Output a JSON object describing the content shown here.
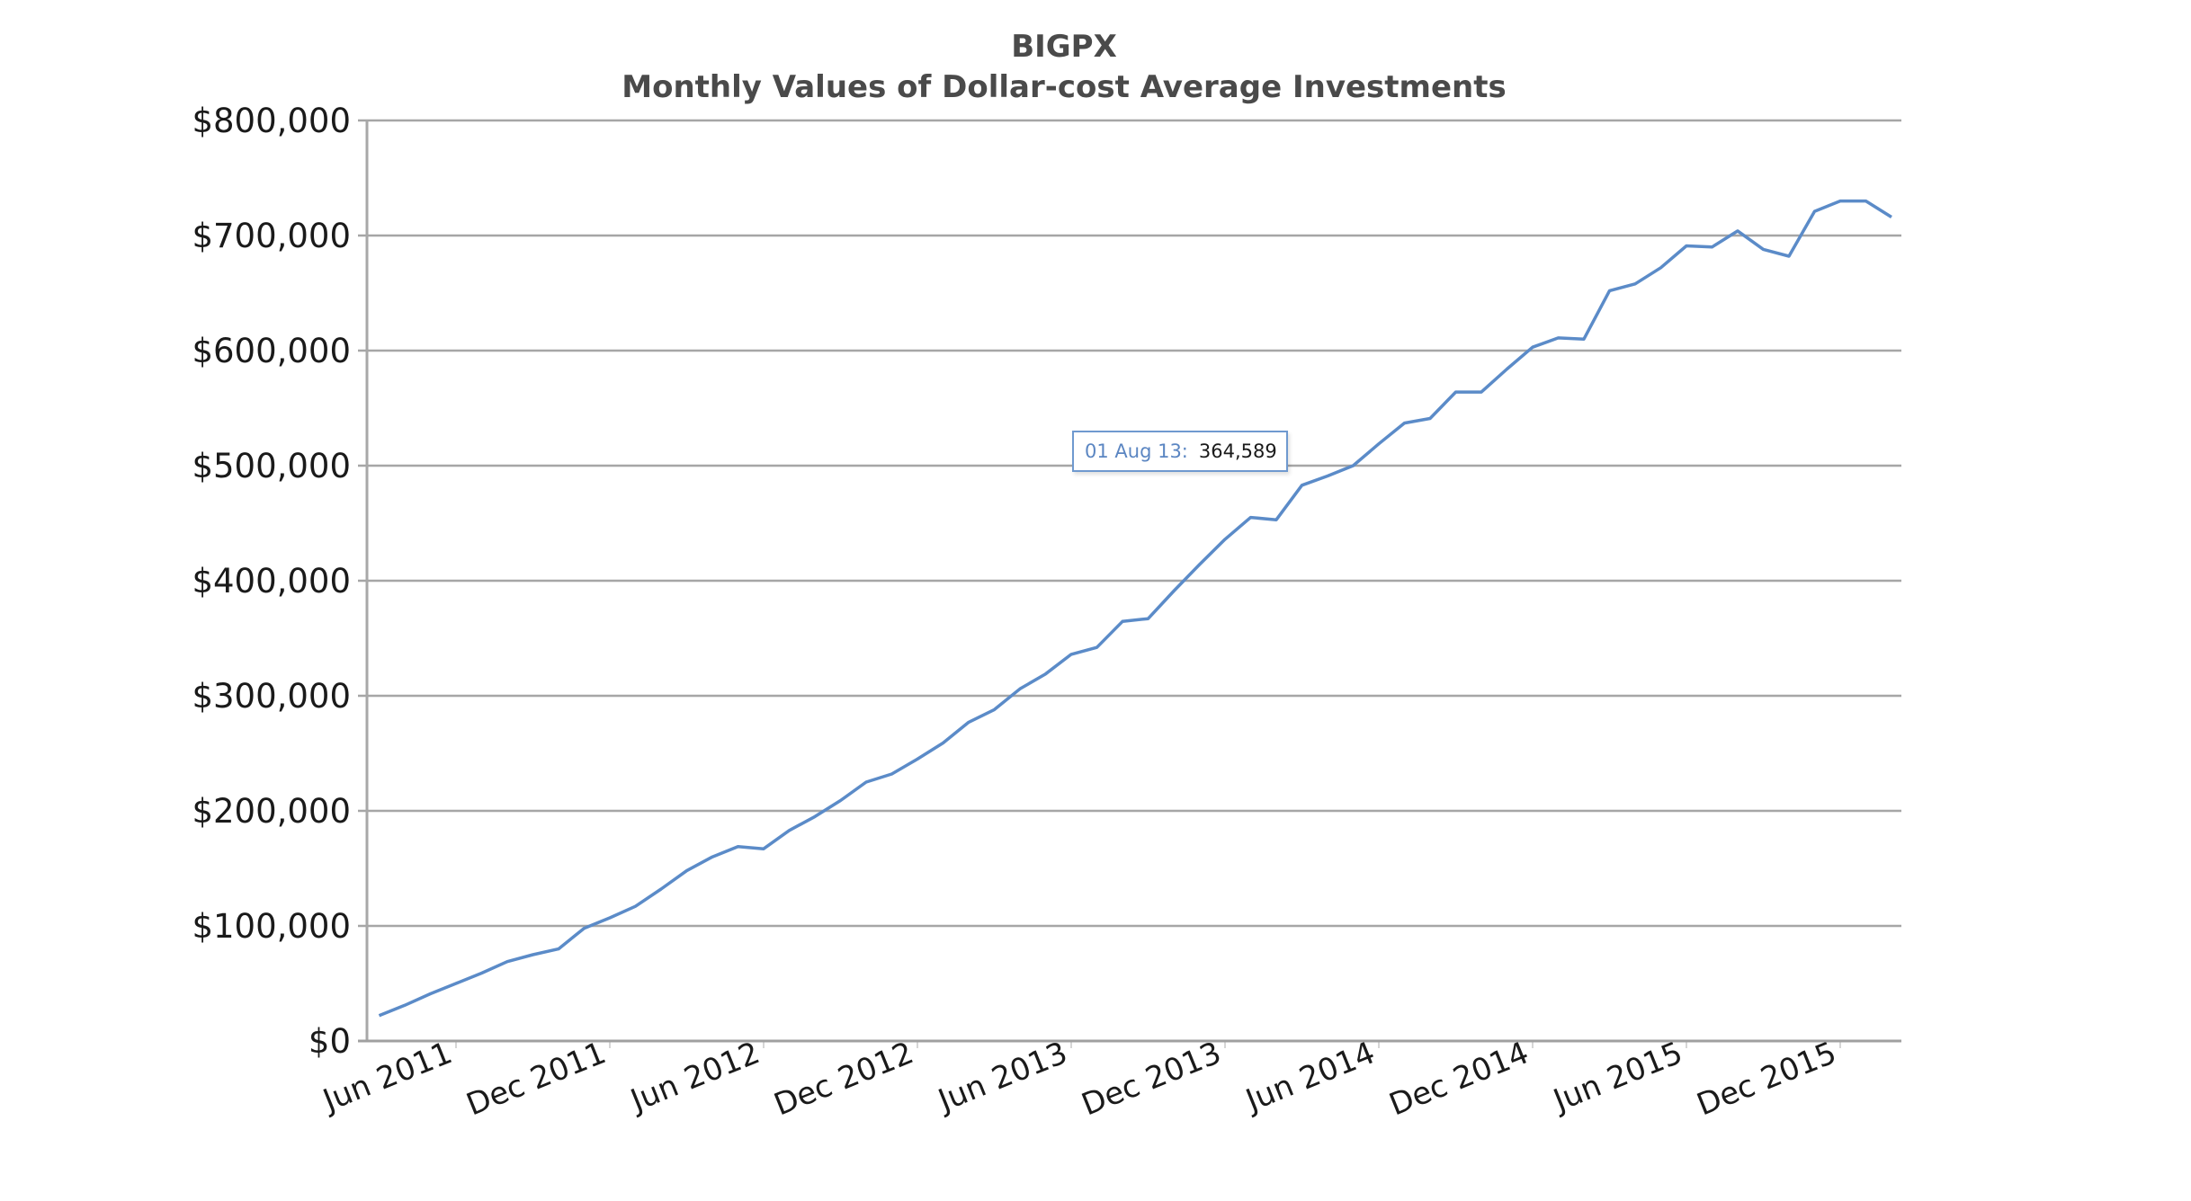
{
  "chart_data": {
    "type": "line",
    "title": "BIGPX",
    "subtitle": "Monthly Values of Dollar-cost Average Investments",
    "xlabel": "",
    "ylabel": "",
    "ylim": [
      0,
      800000
    ],
    "y_ticks": [
      0,
      100000,
      200000,
      300000,
      400000,
      500000,
      600000,
      700000,
      800000
    ],
    "y_tick_labels": [
      "$0",
      "$100,000",
      "$200,000",
      "$300,000",
      "$400,000",
      "$500,000",
      "$600,000",
      "$700,000",
      "$800,000"
    ],
    "x_tick_labels": [
      "Jun 2011",
      "Dec 2011",
      "Jun 2012",
      "Dec 2012",
      "Jun 2013",
      "Dec 2013",
      "Jun 2014",
      "Dec 2014",
      "Jun 2015",
      "Dec 2015"
    ],
    "grid": true,
    "legend": "none",
    "line_color": "#5b8bc8",
    "series": [
      {
        "name": "BIGPX",
        "x": [
          "Mar 2011",
          "Apr 2011",
          "May 2011",
          "Jun 2011",
          "Jul 2011",
          "Aug 2011",
          "Sep 2011",
          "Oct 2011",
          "Nov 2011",
          "Dec 2011",
          "Jan 2012",
          "Feb 2012",
          "Mar 2012",
          "Apr 2012",
          "May 2012",
          "Jun 2012",
          "Jul 2012",
          "Aug 2012",
          "Sep 2012",
          "Oct 2012",
          "Nov 2012",
          "Dec 2012",
          "Jan 2013",
          "Feb 2013",
          "Mar 2013",
          "Apr 2013",
          "May 2013",
          "Jun 2013",
          "Jul 2013",
          "Aug 2013",
          "Sep 2013",
          "Oct 2013",
          "Nov 2013",
          "Dec 2013",
          "Jan 2014",
          "Feb 2014",
          "Mar 2014",
          "Apr 2014",
          "May 2014",
          "Jun 2014",
          "Jul 2014",
          "Aug 2014",
          "Sep 2014",
          "Oct 2014",
          "Nov 2014",
          "Dec 2014",
          "Jan 2015",
          "Feb 2015",
          "Mar 2015",
          "Apr 2015",
          "May 2015",
          "Jun 2015",
          "Jul 2015",
          "Aug 2015",
          "Sep 2015",
          "Oct 2015",
          "Nov 2015",
          "Dec 2015",
          "Jan 2016",
          "Feb 2016"
        ],
        "values": [
          22000,
          31000,
          41000,
          50000,
          59000,
          69000,
          75000,
          80000,
          98000,
          107000,
          117000,
          132000,
          148000,
          160000,
          169000,
          167000,
          183000,
          195000,
          209000,
          225000,
          232000,
          245000,
          259000,
          277000,
          288000,
          306000,
          319000,
          336000,
          342000,
          364589,
          367000,
          391000,
          414000,
          436000,
          455000,
          453000,
          483000,
          491000,
          500000,
          519000,
          537000,
          541000,
          564000,
          564000,
          584000,
          603000,
          611000,
          610000,
          652000,
          658000,
          672000,
          691000,
          690000,
          704000,
          688000,
          682000,
          721000,
          730000,
          730000,
          716000
        ]
      }
    ],
    "tooltip": {
      "label": "01 Aug 13:",
      "value": "364,589"
    }
  }
}
